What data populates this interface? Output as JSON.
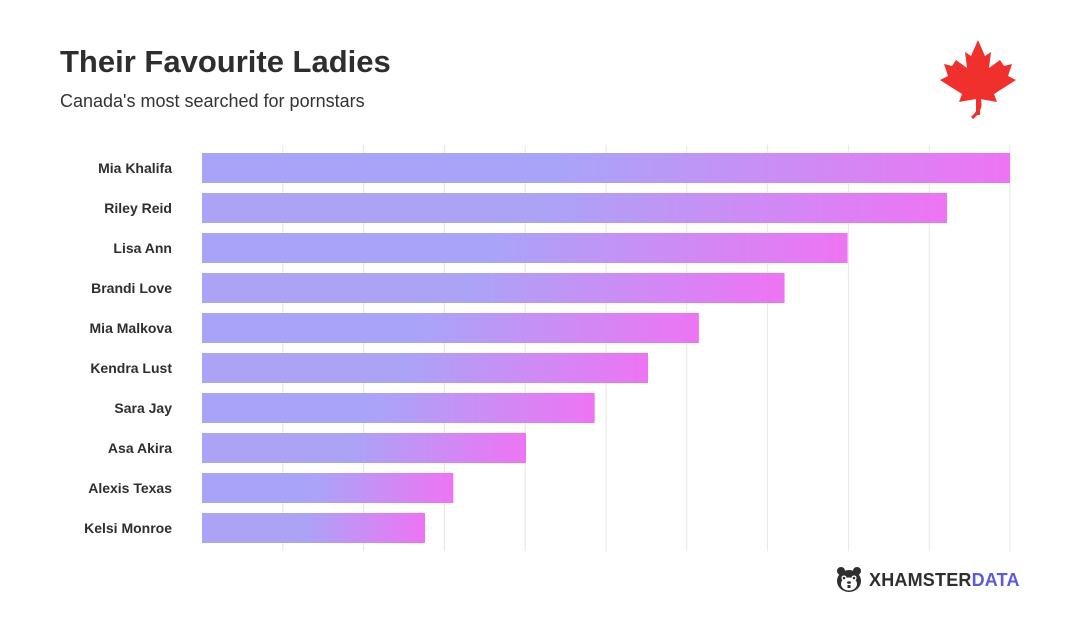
{
  "header": {
    "title": "Their Favourite Ladies",
    "subtitle": "Canada's most searched for pornstars"
  },
  "chart_data": {
    "type": "bar",
    "orientation": "horizontal",
    "categories": [
      "Mia Khalifa",
      "Riley Reid",
      "Lisa Ann",
      "Brandi Love",
      "Mia Malkova",
      "Kendra Lust",
      "Sara Jay",
      "Asa Akira",
      "Alexis Texas",
      "Kelsi Monroe"
    ],
    "values": [
      100,
      92.2,
      79.9,
      72.1,
      61.5,
      55.2,
      48.6,
      40.1,
      31.1,
      27.6
    ],
    "xlim": [
      0,
      100
    ],
    "grid": true,
    "colors": {
      "bar_start": "#aaa4f7",
      "bar_end": "#ee74f3",
      "grid": "#e6e6e6",
      "leaf": "#f0302c"
    }
  },
  "logo": {
    "icon": "hamster-face-icon",
    "brand": "XHAMSTER",
    "brand_accent": "DATA"
  }
}
